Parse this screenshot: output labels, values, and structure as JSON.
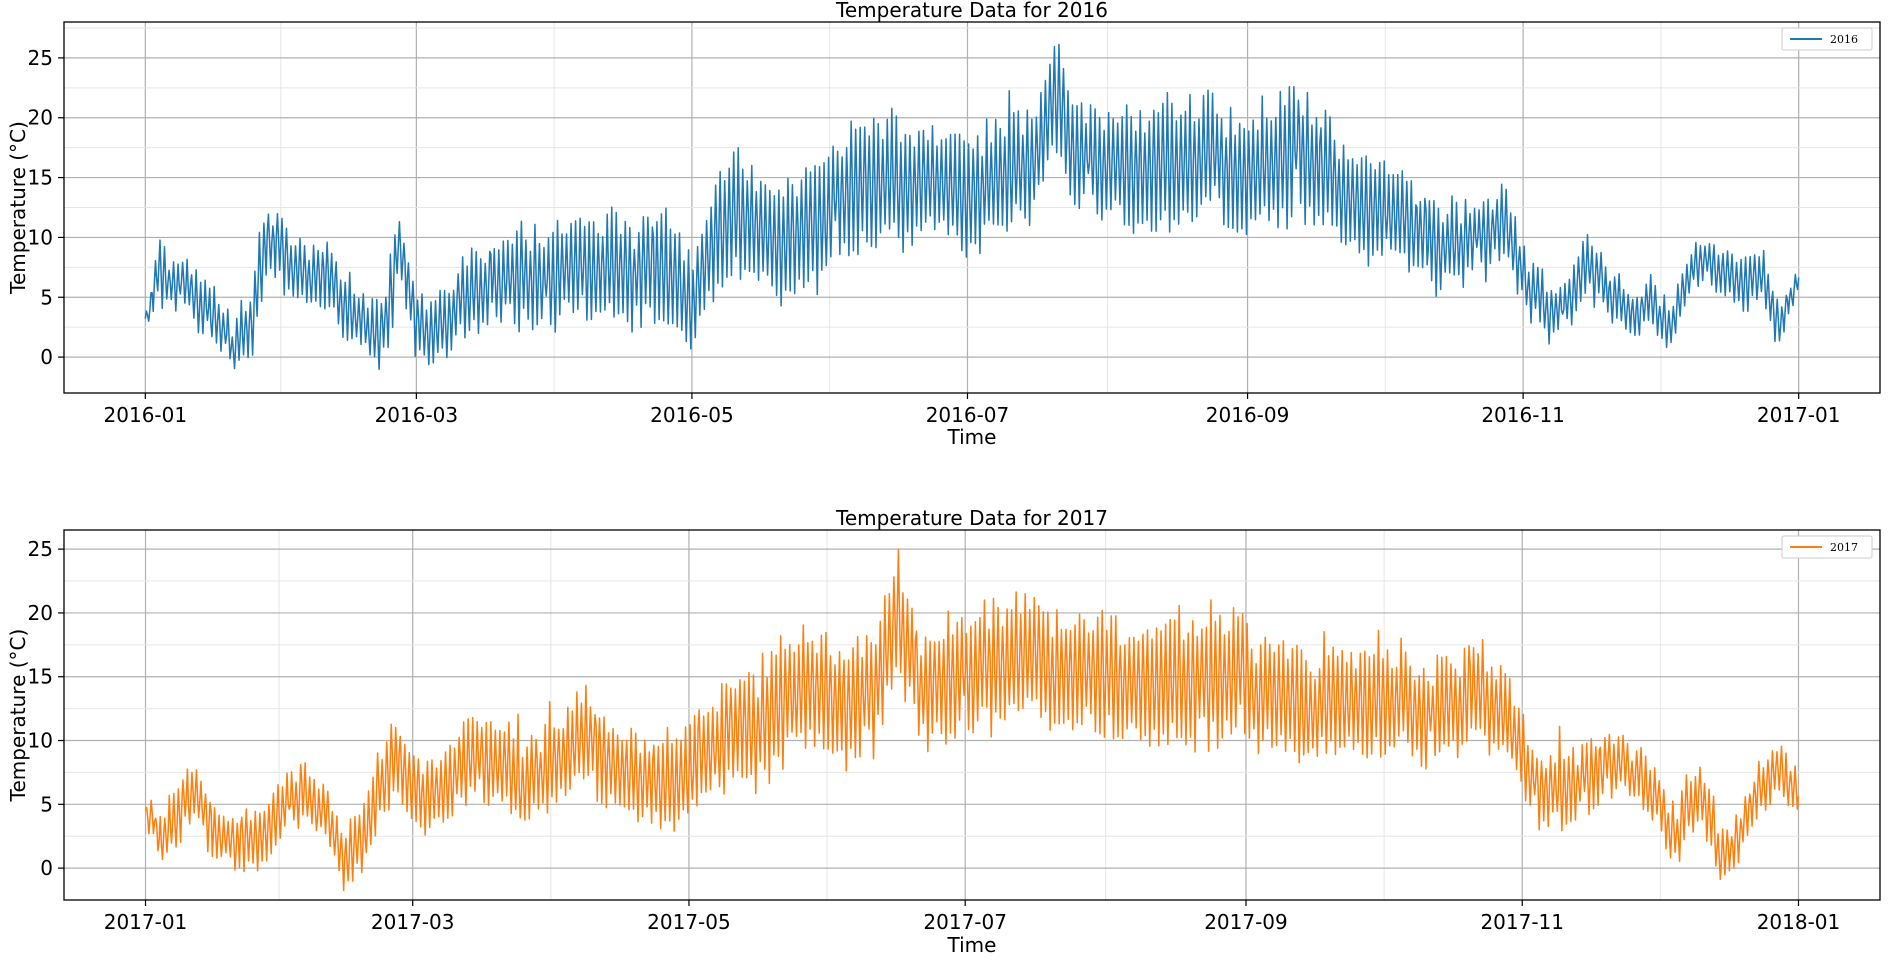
{
  "chart_data": [
    {
      "type": "line",
      "title": "Temperature Data for 2016",
      "xlabel": "Time",
      "ylabel": "Temperature (°C)",
      "xlim": [
        "2015-12-14",
        "2017-01-19"
      ],
      "ylim": [
        -3,
        28
      ],
      "xticks": [
        "2016-01",
        "2016-03",
        "2016-05",
        "2016-07",
        "2016-09",
        "2016-11",
        "2017-01"
      ],
      "yticks": [
        0,
        5,
        10,
        15,
        20,
        25
      ],
      "grid": true,
      "legend_position": "top-right",
      "color": "#1f77b4",
      "series": [
        {
          "name": "2016",
          "start_date": "2016-01-01",
          "end_date": "2017-01-01",
          "x": [
            "2016-01-01",
            "2016-01-04",
            "2016-01-08",
            "2016-01-12",
            "2016-01-16",
            "2016-01-20",
            "2016-01-24",
            "2016-01-28",
            "2016-02-01",
            "2016-02-05",
            "2016-02-10",
            "2016-02-14",
            "2016-02-18",
            "2016-02-22",
            "2016-02-26",
            "2016-03-01",
            "2016-03-05",
            "2016-03-10",
            "2016-03-15",
            "2016-03-20",
            "2016-03-25",
            "2016-03-30",
            "2016-04-05",
            "2016-04-10",
            "2016-04-15",
            "2016-04-20",
            "2016-04-25",
            "2016-05-01",
            "2016-05-06",
            "2016-05-11",
            "2016-05-16",
            "2016-05-21",
            "2016-05-26",
            "2016-06-01",
            "2016-06-06",
            "2016-06-11",
            "2016-06-16",
            "2016-06-21",
            "2016-06-26",
            "2016-07-01",
            "2016-07-06",
            "2016-07-11",
            "2016-07-16",
            "2016-07-20",
            "2016-07-25",
            "2016-07-30",
            "2016-08-04",
            "2016-08-09",
            "2016-08-14",
            "2016-08-19",
            "2016-08-24",
            "2016-08-29",
            "2016-09-03",
            "2016-09-08",
            "2016-09-13",
            "2016-09-18",
            "2016-09-23",
            "2016-09-28",
            "2016-10-03",
            "2016-10-08",
            "2016-10-13",
            "2016-10-18",
            "2016-10-23",
            "2016-10-28",
            "2016-11-02",
            "2016-11-06",
            "2016-11-10",
            "2016-11-15",
            "2016-11-20",
            "2016-11-25",
            "2016-11-30",
            "2016-12-04",
            "2016-12-09",
            "2016-12-14",
            "2016-12-19",
            "2016-12-24",
            "2016-12-28",
            "2017-01-01"
          ],
          "values": [
            3.0,
            7.5,
            6.5,
            5.0,
            3.0,
            1.0,
            2.5,
            10.5,
            8.0,
            6.5,
            7.0,
            4.0,
            2.5,
            1.5,
            9.0,
            3.0,
            2.0,
            4.5,
            6.0,
            6.5,
            7.0,
            6.5,
            8.0,
            7.0,
            8.0,
            7.5,
            7.5,
            4.0,
            10.0,
            12.0,
            11.0,
            10.0,
            11.0,
            12.0,
            15.0,
            14.5,
            14.0,
            15.0,
            14.0,
            13.5,
            15.0,
            15.5,
            16.0,
            22.0,
            17.0,
            16.0,
            16.0,
            15.5,
            16.0,
            16.0,
            17.5,
            15.5,
            15.0,
            17.0,
            17.0,
            15.5,
            13.0,
            12.5,
            12.0,
            10.0,
            9.5,
            9.5,
            10.0,
            11.0,
            6.0,
            4.5,
            4.0,
            8.0,
            5.0,
            4.0,
            4.5,
            3.0,
            8.0,
            7.5,
            6.5,
            6.5,
            3.0,
            6.5
          ],
          "amplitude": [
            0.5,
            2.5,
            2.5,
            2.5,
            2.5,
            2.0,
            3.0,
            3.5,
            3.5,
            3.0,
            3.0,
            3.0,
            3.0,
            3.0,
            3.5,
            3.0,
            3.0,
            3.5,
            4.0,
            4.0,
            4.5,
            4.5,
            4.5,
            4.5,
            5.0,
            5.0,
            5.5,
            4.0,
            5.5,
            5.5,
            5.0,
            5.0,
            5.5,
            5.5,
            6.0,
            6.0,
            5.5,
            5.0,
            5.0,
            5.0,
            5.0,
            5.0,
            5.0,
            5.0,
            5.0,
            5.0,
            5.0,
            5.5,
            6.0,
            5.5,
            5.5,
            5.5,
            6.0,
            6.0,
            6.0,
            5.0,
            4.5,
            4.5,
            4.0,
            4.0,
            4.0,
            3.5,
            3.5,
            3.5,
            2.5,
            2.5,
            2.5,
            2.5,
            2.0,
            2.0,
            2.0,
            2.0,
            2.0,
            2.0,
            2.0,
            2.0,
            2.0,
            1.0
          ]
        }
      ]
    },
    {
      "type": "line",
      "title": "Temperature Data for 2017",
      "xlabel": "Time",
      "ylabel": "Temperature (°C)",
      "xlim": [
        "2016-12-14",
        "2018-01-19"
      ],
      "ylim": [
        -2.5,
        26.5
      ],
      "xticks": [
        "2017-01",
        "2017-03",
        "2017-05",
        "2017-07",
        "2017-09",
        "2017-11",
        "2018-01"
      ],
      "yticks": [
        0,
        5,
        10,
        15,
        20,
        25
      ],
      "grid": true,
      "legend_position": "top-right",
      "color": "#ff7f0e",
      "series": [
        {
          "name": "2017",
          "start_date": "2017-01-01",
          "end_date": "2018-01-01",
          "x": [
            "2017-01-01",
            "2017-01-04",
            "2017-01-08",
            "2017-01-12",
            "2017-01-16",
            "2017-01-20",
            "2017-01-24",
            "2017-01-28",
            "2017-02-01",
            "2017-02-05",
            "2017-02-10",
            "2017-02-14",
            "2017-02-18",
            "2017-02-22",
            "2017-02-26",
            "2017-03-01",
            "2017-03-05",
            "2017-03-10",
            "2017-03-15",
            "2017-03-20",
            "2017-03-25",
            "2017-03-30",
            "2017-04-05",
            "2017-04-10",
            "2017-04-15",
            "2017-04-20",
            "2017-04-25",
            "2017-05-01",
            "2017-05-06",
            "2017-05-11",
            "2017-05-16",
            "2017-05-21",
            "2017-05-26",
            "2017-06-01",
            "2017-06-06",
            "2017-06-11",
            "2017-06-16",
            "2017-06-21",
            "2017-06-26",
            "2017-07-01",
            "2017-07-06",
            "2017-07-11",
            "2017-07-16",
            "2017-07-21",
            "2017-07-26",
            "2017-07-31",
            "2017-08-05",
            "2017-08-10",
            "2017-08-15",
            "2017-08-20",
            "2017-08-25",
            "2017-08-30",
            "2017-09-04",
            "2017-09-09",
            "2017-09-14",
            "2017-09-19",
            "2017-09-24",
            "2017-09-29",
            "2017-10-04",
            "2017-10-09",
            "2017-10-14",
            "2017-10-19",
            "2017-10-24",
            "2017-10-29",
            "2017-11-03",
            "2017-11-07",
            "2017-11-11",
            "2017-11-16",
            "2017-11-21",
            "2017-11-26",
            "2017-12-01",
            "2017-12-05",
            "2017-12-10",
            "2017-12-15",
            "2017-12-20",
            "2017-12-24",
            "2017-12-28",
            "2018-01-01"
          ],
          "values": [
            5.0,
            2.5,
            4.0,
            6.0,
            3.5,
            2.5,
            2.0,
            3.0,
            5.0,
            6.0,
            4.0,
            1.0,
            2.0,
            7.0,
            8.0,
            6.0,
            5.0,
            7.0,
            8.5,
            8.0,
            6.0,
            7.5,
            9.5,
            10.0,
            8.0,
            7.5,
            6.0,
            7.5,
            9.5,
            11.5,
            11.0,
            13.0,
            14.0,
            13.5,
            12.5,
            14.5,
            20.0,
            15.0,
            14.5,
            15.0,
            16.0,
            16.5,
            16.5,
            15.5,
            15.0,
            15.0,
            15.0,
            14.5,
            14.0,
            14.0,
            15.0,
            15.5,
            14.0,
            13.5,
            12.5,
            13.0,
            13.0,
            12.5,
            13.0,
            12.5,
            12.0,
            13.0,
            13.0,
            12.0,
            7.0,
            6.0,
            6.5,
            7.0,
            8.0,
            7.5,
            4.5,
            2.5,
            6.0,
            1.0,
            3.5,
            7.0,
            8.0,
            5.0
          ],
          "amplitude": [
            1.0,
            2.0,
            2.5,
            2.5,
            2.5,
            2.5,
            2.5,
            2.5,
            2.5,
            2.5,
            2.5,
            2.5,
            2.5,
            3.0,
            3.5,
            3.0,
            3.0,
            3.5,
            3.5,
            3.5,
            3.5,
            3.5,
            4.0,
            4.0,
            4.0,
            4.0,
            4.0,
            4.0,
            4.5,
            5.0,
            5.0,
            5.5,
            5.5,
            5.0,
            5.0,
            5.0,
            5.0,
            5.0,
            5.0,
            5.0,
            5.0,
            5.5,
            5.0,
            5.0,
            5.0,
            5.0,
            5.0,
            5.0,
            5.5,
            5.5,
            5.5,
            5.5,
            5.0,
            5.0,
            4.5,
            4.5,
            4.5,
            4.5,
            4.5,
            4.0,
            4.0,
            4.0,
            4.0,
            4.0,
            3.0,
            3.0,
            3.0,
            3.0,
            2.5,
            2.5,
            2.5,
            2.5,
            2.5,
            2.5,
            2.0,
            2.0,
            2.0,
            2.0
          ]
        }
      ]
    }
  ]
}
